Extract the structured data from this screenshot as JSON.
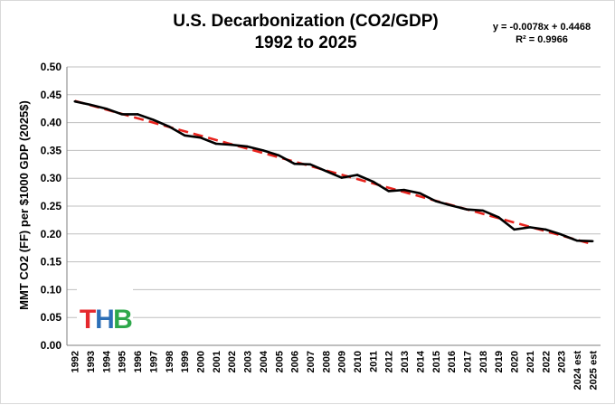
{
  "chart_data": {
    "type": "line",
    "title_line1": "U.S. Decarbonization (CO2/GDP)",
    "title_line2": "1992 to 2025",
    "ylabel": "MMT CO2 (FF) per $1000 GDP (2025$)",
    "xlabel": "",
    "ylim": [
      0.0,
      0.5
    ],
    "yticks": [
      "0.00",
      "0.05",
      "0.10",
      "0.15",
      "0.20",
      "0.25",
      "0.30",
      "0.35",
      "0.40",
      "0.45",
      "0.50"
    ],
    "grid": "horizontal",
    "categories": [
      "1992",
      "1993",
      "1994",
      "1995",
      "1996",
      "1997",
      "1998",
      "1999",
      "2000",
      "2001",
      "2002",
      "2003",
      "2004",
      "2005",
      "2006",
      "2007",
      "2008",
      "2009",
      "2010",
      "2011",
      "2012",
      "2013",
      "2014",
      "2015",
      "2016",
      "2017",
      "2018",
      "2019",
      "2020",
      "2021",
      "2022",
      "2023",
      "2024 est",
      "2025 est"
    ],
    "series": [
      {
        "name": "",
        "color": "#000000",
        "style": "solid",
        "values": [
          0.438,
          0.432,
          0.425,
          0.415,
          0.415,
          0.405,
          0.393,
          0.377,
          0.373,
          0.362,
          0.36,
          0.357,
          0.35,
          0.341,
          0.326,
          0.325,
          0.313,
          0.301,
          0.306,
          0.294,
          0.277,
          0.279,
          0.273,
          0.259,
          0.251,
          0.244,
          0.242,
          0.23,
          0.208,
          0.212,
          0.208,
          0.199,
          0.188,
          0.187
        ]
      }
    ],
    "trendline": {
      "type": "linear",
      "color": "#e8231d",
      "style": "dashed",
      "slope": -0.0078,
      "intercept": 0.4468,
      "equation_label": "y = -0.0078x  + 0.4468",
      "r2_label": "R² = 0.9966"
    }
  },
  "logo": {
    "letters": [
      "T",
      "H",
      "B"
    ],
    "colors": [
      "#e5282d",
      "#2c6fb7",
      "#2ea84b"
    ]
  }
}
